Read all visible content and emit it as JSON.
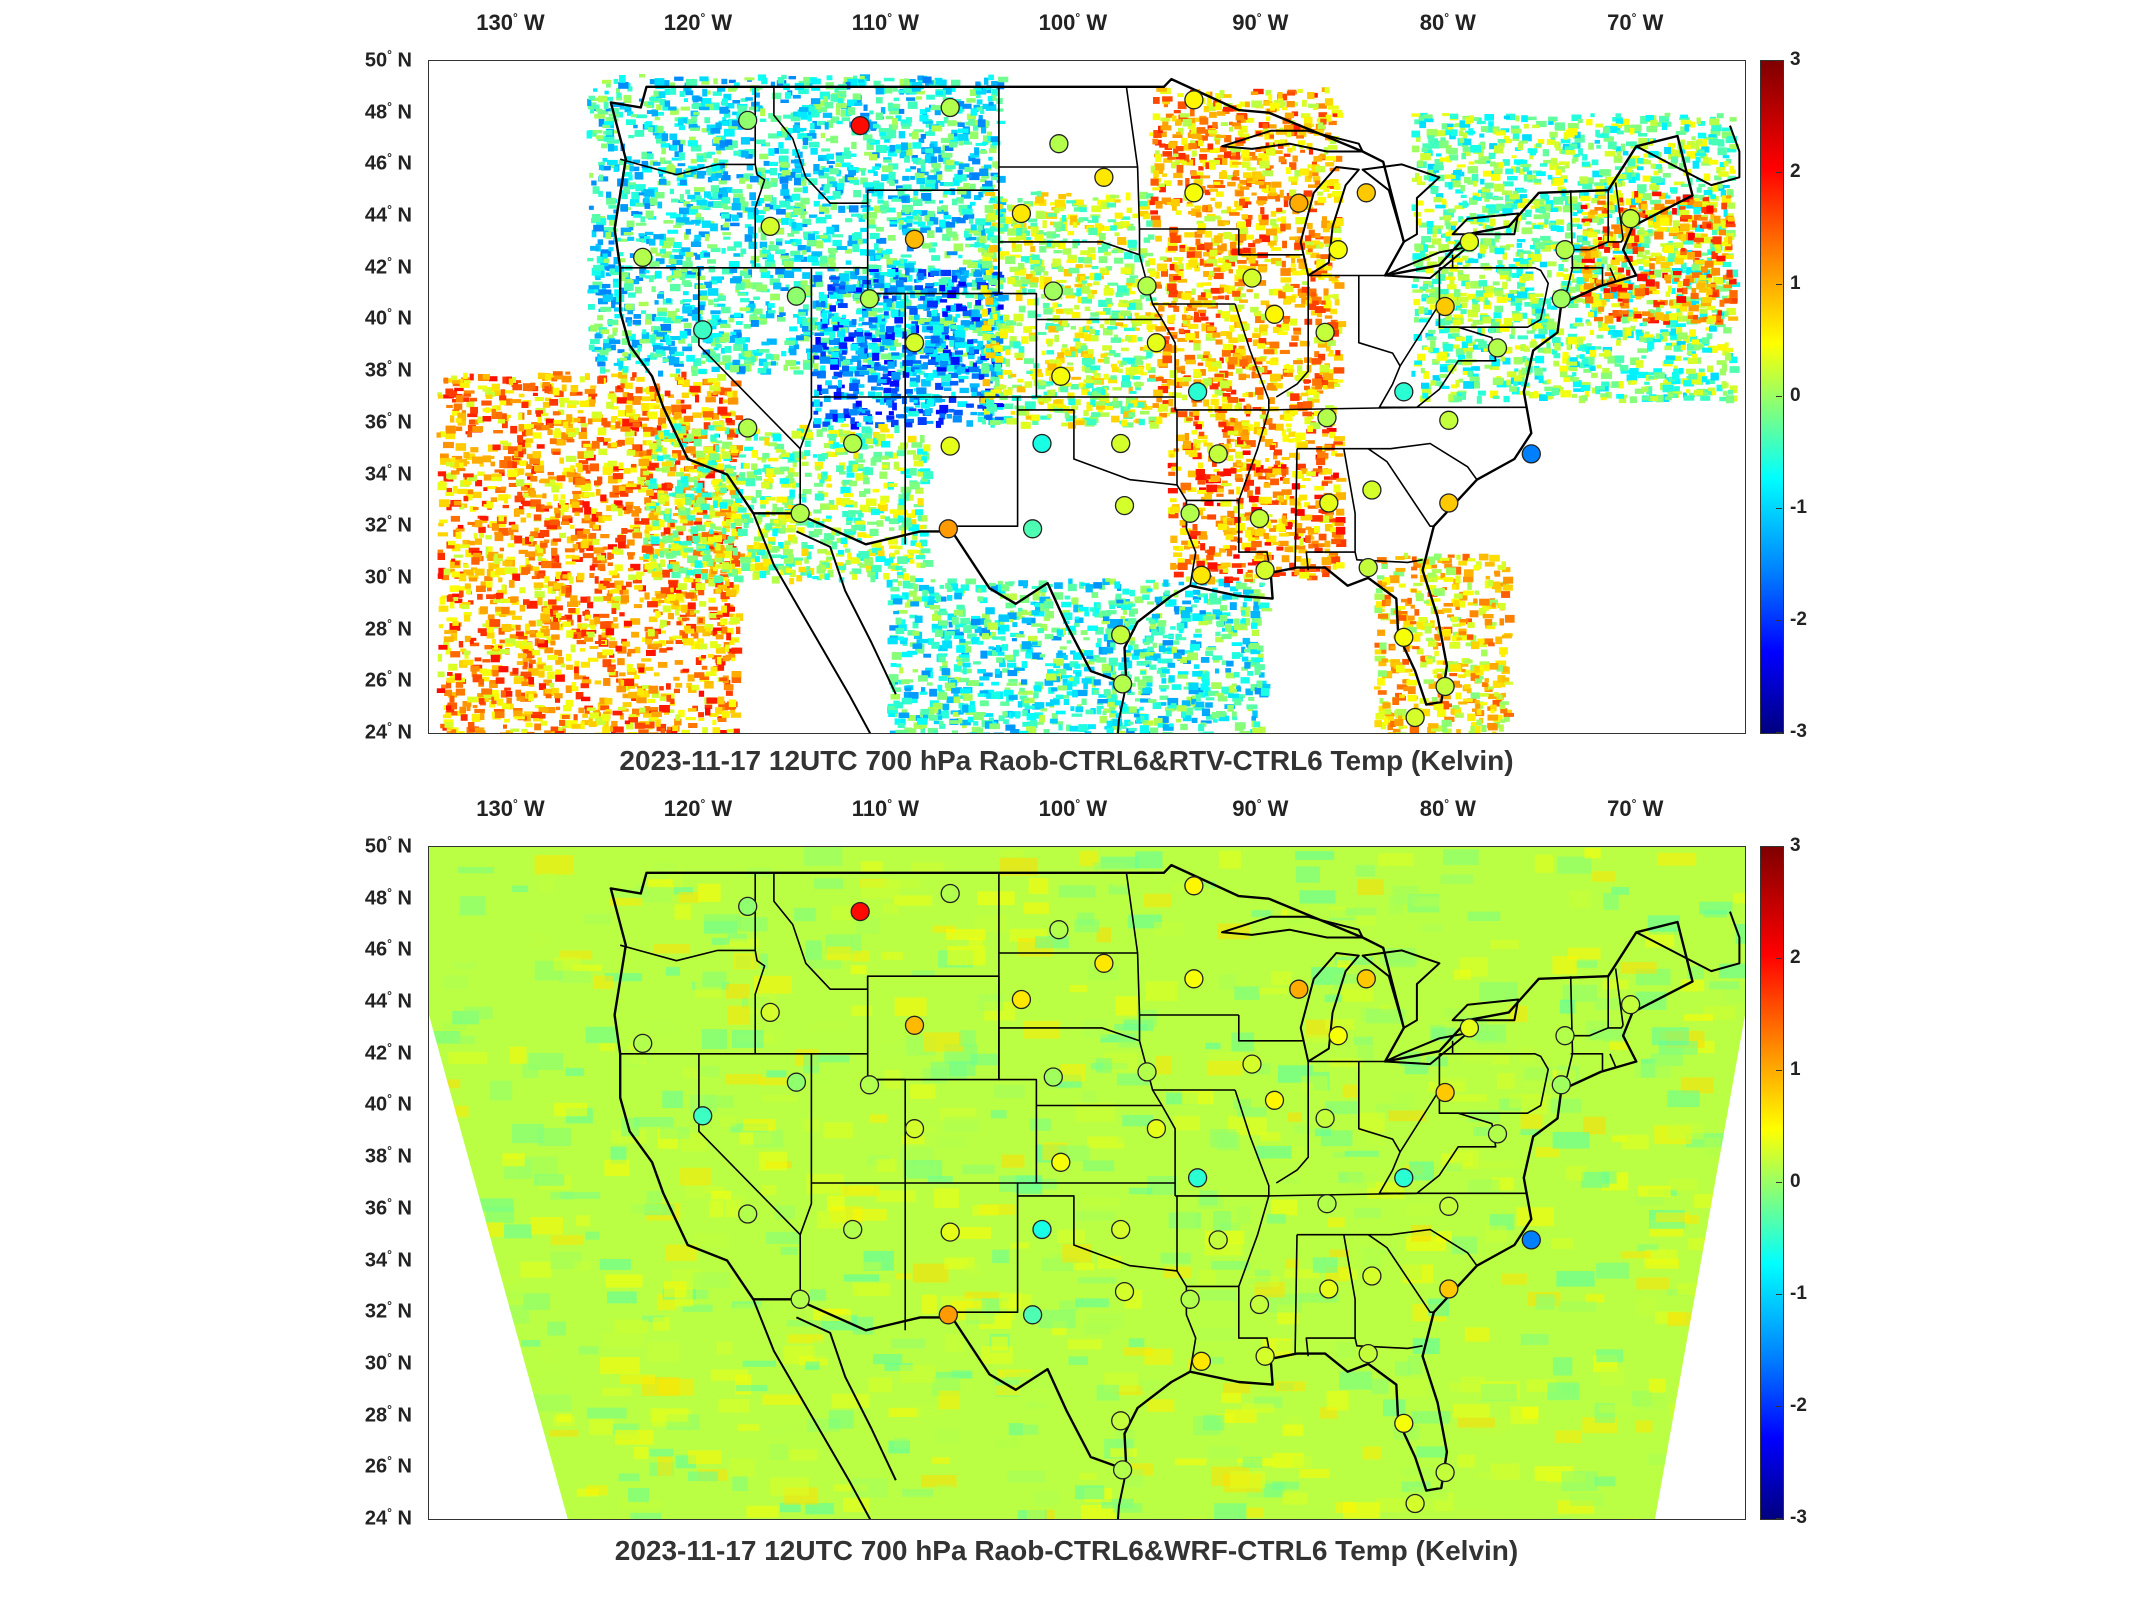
{
  "panels": [
    {
      "title": "2023-11-17 12UTC 700 hPa Raob-CTRL6&RTV-CTRL6 Temp (Kelvin)",
      "field_style": "patchy-satellite",
      "lon_labels": [
        "130",
        "120",
        "110",
        "100",
        "90",
        "80",
        "70"
      ],
      "lon_suffix": "W",
      "lat_labels": [
        "50",
        "48",
        "46",
        "44",
        "42",
        "40",
        "38",
        "36",
        "34",
        "32",
        "30",
        "28",
        "26",
        "24"
      ],
      "lat_suffix": "N",
      "colorbar_ticks": [
        "3",
        "2",
        "1",
        "0",
        "-1",
        "-2",
        "-3"
      ]
    },
    {
      "title": "2023-11-17 12UTC 700 hPa Raob-CTRL6&WRF-CTRL6 Temp (Kelvin)",
      "field_style": "smooth-model",
      "lon_labels": [
        "130",
        "120",
        "110",
        "100",
        "90",
        "80",
        "70"
      ],
      "lon_suffix": "W",
      "lat_labels": [
        "50",
        "48",
        "46",
        "44",
        "42",
        "40",
        "38",
        "36",
        "34",
        "32",
        "30",
        "28",
        "26",
        "24"
      ],
      "lat_suffix": "N",
      "colorbar_ticks": [
        "3",
        "2",
        "1",
        "0",
        "-1",
        "-2",
        "-3"
      ]
    }
  ],
  "colorbar": {
    "min": -3,
    "max": 3,
    "colors": [
      "#00007f",
      "#0000ff",
      "#0080ff",
      "#00ffff",
      "#7fff7f",
      "#ffff00",
      "#ff8c00",
      "#ff0000",
      "#7f0000"
    ]
  },
  "stations": [
    {
      "lon": -117.4,
      "lat": 47.7,
      "value": 0.1
    },
    {
      "lon": -111.4,
      "lat": 47.5,
      "value": 2.2
    },
    {
      "lon": -106.6,
      "lat": 48.2,
      "value": 0.3
    },
    {
      "lon": -100.8,
      "lat": 46.8,
      "value": 0.3
    },
    {
      "lon": -93.6,
      "lat": 48.5,
      "value": 0.8
    },
    {
      "lon": -98.4,
      "lat": 45.5,
      "value": 0.9
    },
    {
      "lon": -93.6,
      "lat": 44.9,
      "value": 0.7
    },
    {
      "lon": -88.0,
      "lat": 44.5,
      "value": 1.3
    },
    {
      "lon": -84.4,
      "lat": 44.9,
      "value": 1.1
    },
    {
      "lon": -116.2,
      "lat": 43.6,
      "value": 0.5
    },
    {
      "lon": -108.5,
      "lat": 43.1,
      "value": 1.2
    },
    {
      "lon": -102.8,
      "lat": 44.1,
      "value": 0.9
    },
    {
      "lon": -123.0,
      "lat": 42.4,
      "value": 0.3
    },
    {
      "lon": -114.8,
      "lat": 40.9,
      "value": 0.1
    },
    {
      "lon": -110.9,
      "lat": 40.8,
      "value": 0.3
    },
    {
      "lon": -101.1,
      "lat": 41.1,
      "value": 0.2
    },
    {
      "lon": -96.1,
      "lat": 41.3,
      "value": 0.3
    },
    {
      "lon": -90.5,
      "lat": 41.6,
      "value": 0.5
    },
    {
      "lon": -85.9,
      "lat": 42.7,
      "value": 0.7
    },
    {
      "lon": -78.9,
      "lat": 43.0,
      "value": 0.6
    },
    {
      "lon": -73.8,
      "lat": 42.7,
      "value": 0.3
    },
    {
      "lon": -70.3,
      "lat": 43.9,
      "value": 0.4
    },
    {
      "lon": -119.8,
      "lat": 39.6,
      "value": -0.4
    },
    {
      "lon": -108.5,
      "lat": 39.1,
      "value": 0.5
    },
    {
      "lon": -95.6,
      "lat": 39.1,
      "value": 0.6
    },
    {
      "lon": -89.3,
      "lat": 40.2,
      "value": 0.8
    },
    {
      "lon": -86.6,
      "lat": 39.5,
      "value": 0.4
    },
    {
      "lon": -80.2,
      "lat": 40.5,
      "value": 1.1
    },
    {
      "lon": -77.4,
      "lat": 38.9,
      "value": 0.3
    },
    {
      "lon": -74.0,
      "lat": 40.8,
      "value": 0.2
    },
    {
      "lon": -117.4,
      "lat": 35.8,
      "value": 0.3
    },
    {
      "lon": -111.8,
      "lat": 35.2,
      "value": 0.3
    },
    {
      "lon": -106.6,
      "lat": 35.1,
      "value": 0.6
    },
    {
      "lon": -101.7,
      "lat": 35.2,
      "value": -0.6
    },
    {
      "lon": -97.5,
      "lat": 35.2,
      "value": 0.5
    },
    {
      "lon": -100.7,
      "lat": 37.8,
      "value": 0.7
    },
    {
      "lon": -93.4,
      "lat": 37.2,
      "value": -0.5
    },
    {
      "lon": -92.3,
      "lat": 34.8,
      "value": 0.4
    },
    {
      "lon": -86.5,
      "lat": 36.2,
      "value": 0.3
    },
    {
      "lon": -82.4,
      "lat": 37.2,
      "value": -0.5
    },
    {
      "lon": -80.0,
      "lat": 36.1,
      "value": 0.4
    },
    {
      "lon": -75.6,
      "lat": 34.8,
      "value": -1.5
    },
    {
      "lon": -114.6,
      "lat": 32.5,
      "value": 0.3
    },
    {
      "lon": -106.7,
      "lat": 31.9,
      "value": 1.4
    },
    {
      "lon": -102.2,
      "lat": 31.9,
      "value": -0.3
    },
    {
      "lon": -97.3,
      "lat": 32.8,
      "value": 0.5
    },
    {
      "lon": -93.8,
      "lat": 32.5,
      "value": 0.3
    },
    {
      "lon": -90.1,
      "lat": 32.3,
      "value": 0.4
    },
    {
      "lon": -86.4,
      "lat": 32.9,
      "value": 0.6
    },
    {
      "lon": -84.1,
      "lat": 33.4,
      "value": 0.5
    },
    {
      "lon": -80.0,
      "lat": 32.9,
      "value": 1.1
    },
    {
      "lon": -93.2,
      "lat": 30.1,
      "value": 0.9
    },
    {
      "lon": -89.8,
      "lat": 30.3,
      "value": 0.5
    },
    {
      "lon": -84.3,
      "lat": 30.4,
      "value": 0.4
    },
    {
      "lon": -97.5,
      "lat": 27.8,
      "value": 0.4
    },
    {
      "lon": -97.4,
      "lat": 25.9,
      "value": 0.3
    },
    {
      "lon": -82.4,
      "lat": 27.7,
      "value": 0.7
    },
    {
      "lon": -80.2,
      "lat": 25.8,
      "value": 0.4
    },
    {
      "lon": -81.8,
      "lat": 24.6,
      "value": 0.5
    }
  ]
}
